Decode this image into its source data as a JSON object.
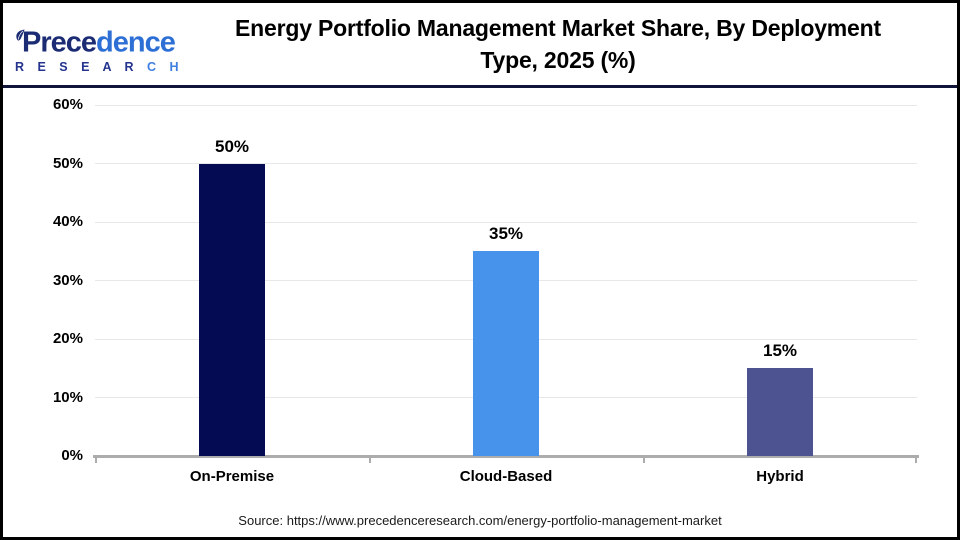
{
  "header": {
    "logo": {
      "main_left": "Prece",
      "main_right": "dence",
      "sub_left": "R E S E A R ",
      "sub_right": "C H"
    },
    "title_line1": "Energy Portfolio Management Market Share, By Deployment",
    "title_line2": "Type, 2025 (%)"
  },
  "chart_data": {
    "type": "bar",
    "title": "Energy Portfolio Management Market Share, By Deployment Type, 2025 (%)",
    "categories": [
      "On-Premise",
      "Cloud-Based",
      "Hybrid"
    ],
    "values": [
      50,
      35,
      15
    ],
    "value_labels": [
      "50%",
      "35%",
      "15%"
    ],
    "bar_colors": [
      "#050B52",
      "#4793EB",
      "#4D5391"
    ],
    "xlabel": "",
    "ylabel": "",
    "ylim": [
      0,
      60
    ],
    "ytick_step": 10,
    "ytick_labels": [
      "0%",
      "10%",
      "20%",
      "30%",
      "40%",
      "50%",
      "60%"
    ],
    "grid": true,
    "legend": "none",
    "gridline_color": "#E8E8E8",
    "axis_color": "#ACACAC"
  },
  "footer": {
    "source": "Source: https://www.precedenceresearch.com/energy-portfolio-management-market"
  },
  "colors": {
    "page_border": "#000000",
    "header_divider": "#111539",
    "title_text": "#000000",
    "logo_navy": "#1B2C74",
    "logo_blue": "#2E6FD6"
  }
}
